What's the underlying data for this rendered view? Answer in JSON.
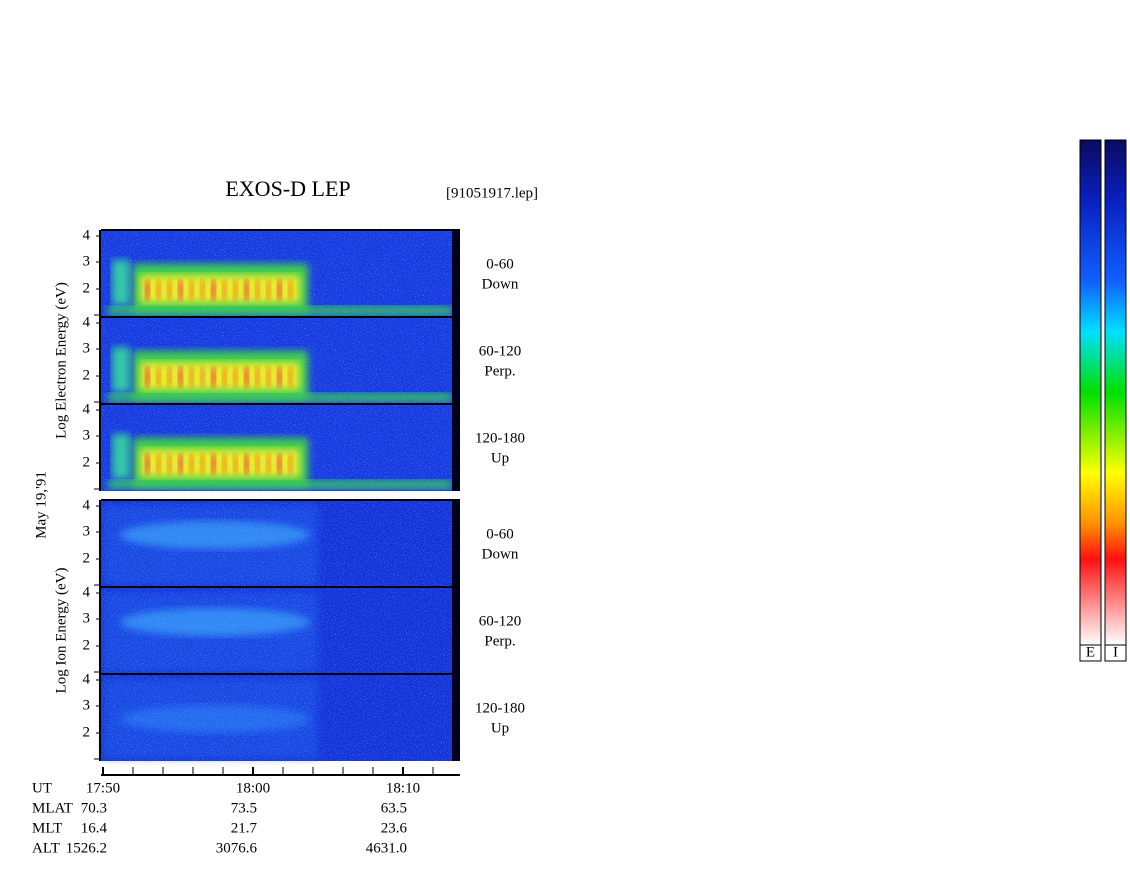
{
  "title": "EXOS-D LEP",
  "file": "[91051917.lep]",
  "date": "May 19,'91",
  "groups": [
    {
      "axis_label": "Log Electron Energy (eV)",
      "panels": [
        {
          "yticks": [
            "4",
            "3",
            "2"
          ],
          "pitch": "0-60",
          "direction": "Down"
        },
        {
          "yticks": [
            "4",
            "3",
            "2"
          ],
          "pitch": "60-120",
          "direction": "Perp."
        },
        {
          "yticks": [
            "4",
            "3",
            "2"
          ],
          "pitch": "120-180",
          "direction": "Up"
        }
      ]
    },
    {
      "axis_label": "Log Ion Energy (eV)",
      "panels": [
        {
          "yticks": [
            "4",
            "3",
            "2"
          ],
          "pitch": "0-60",
          "direction": "Down"
        },
        {
          "yticks": [
            "4",
            "3",
            "2"
          ],
          "pitch": "60-120",
          "direction": "Perp."
        },
        {
          "yticks": [
            "4",
            "3",
            "2"
          ],
          "pitch": "120-180",
          "direction": "Up"
        }
      ]
    }
  ],
  "time_table": {
    "rows": [
      [
        "UT",
        "17:50",
        "18:00",
        "18:10"
      ],
      [
        "MLAT",
        "70.3",
        "73.5",
        "63.5"
      ],
      [
        "MLT",
        "16.4",
        "21.7",
        "23.6"
      ],
      [
        "ALT",
        "1526.2",
        "3076.6",
        "4631.0"
      ]
    ]
  },
  "colorbars": [
    "E",
    "I"
  ]
}
